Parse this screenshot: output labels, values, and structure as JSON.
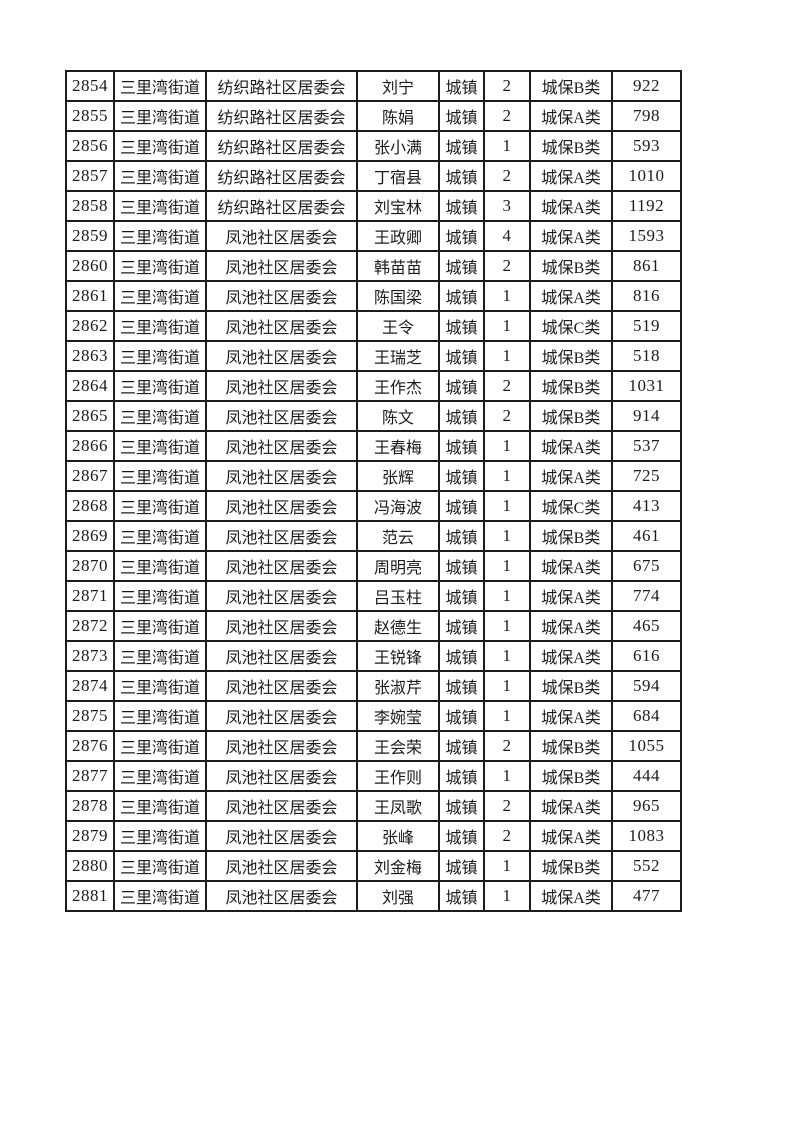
{
  "table": {
    "rows": [
      [
        "2854",
        "三里湾街道",
        "纺织路社区居委会",
        "刘宁",
        "城镇",
        "2",
        "城保B类",
        "922"
      ],
      [
        "2855",
        "三里湾街道",
        "纺织路社区居委会",
        "陈娟",
        "城镇",
        "2",
        "城保A类",
        "798"
      ],
      [
        "2856",
        "三里湾街道",
        "纺织路社区居委会",
        "张小满",
        "城镇",
        "1",
        "城保B类",
        "593"
      ],
      [
        "2857",
        "三里湾街道",
        "纺织路社区居委会",
        "丁宿县",
        "城镇",
        "2",
        "城保A类",
        "1010"
      ],
      [
        "2858",
        "三里湾街道",
        "纺织路社区居委会",
        "刘宝林",
        "城镇",
        "3",
        "城保A类",
        "1192"
      ],
      [
        "2859",
        "三里湾街道",
        "凤池社区居委会",
        "王政卿",
        "城镇",
        "4",
        "城保A类",
        "1593"
      ],
      [
        "2860",
        "三里湾街道",
        "凤池社区居委会",
        "韩苗苗",
        "城镇",
        "2",
        "城保B类",
        "861"
      ],
      [
        "2861",
        "三里湾街道",
        "凤池社区居委会",
        "陈国梁",
        "城镇",
        "1",
        "城保A类",
        "816"
      ],
      [
        "2862",
        "三里湾街道",
        "凤池社区居委会",
        "王令",
        "城镇",
        "1",
        "城保C类",
        "519"
      ],
      [
        "2863",
        "三里湾街道",
        "凤池社区居委会",
        "王瑞芝",
        "城镇",
        "1",
        "城保B类",
        "518"
      ],
      [
        "2864",
        "三里湾街道",
        "凤池社区居委会",
        "王作杰",
        "城镇",
        "2",
        "城保B类",
        "1031"
      ],
      [
        "2865",
        "三里湾街道",
        "凤池社区居委会",
        "陈文",
        "城镇",
        "2",
        "城保B类",
        "914"
      ],
      [
        "2866",
        "三里湾街道",
        "凤池社区居委会",
        "王春梅",
        "城镇",
        "1",
        "城保A类",
        "537"
      ],
      [
        "2867",
        "三里湾街道",
        "凤池社区居委会",
        "张辉",
        "城镇",
        "1",
        "城保A类",
        "725"
      ],
      [
        "2868",
        "三里湾街道",
        "凤池社区居委会",
        "冯海波",
        "城镇",
        "1",
        "城保C类",
        "413"
      ],
      [
        "2869",
        "三里湾街道",
        "凤池社区居委会",
        "范云",
        "城镇",
        "1",
        "城保B类",
        "461"
      ],
      [
        "2870",
        "三里湾街道",
        "凤池社区居委会",
        "周明亮",
        "城镇",
        "1",
        "城保A类",
        "675"
      ],
      [
        "2871",
        "三里湾街道",
        "凤池社区居委会",
        "吕玉柱",
        "城镇",
        "1",
        "城保A类",
        "774"
      ],
      [
        "2872",
        "三里湾街道",
        "凤池社区居委会",
        "赵德生",
        "城镇",
        "1",
        "城保A类",
        "465"
      ],
      [
        "2873",
        "三里湾街道",
        "凤池社区居委会",
        "王锐锋",
        "城镇",
        "1",
        "城保A类",
        "616"
      ],
      [
        "2874",
        "三里湾街道",
        "凤池社区居委会",
        "张淑芹",
        "城镇",
        "1",
        "城保B类",
        "594"
      ],
      [
        "2875",
        "三里湾街道",
        "凤池社区居委会",
        "李婉莹",
        "城镇",
        "1",
        "城保A类",
        "684"
      ],
      [
        "2876",
        "三里湾街道",
        "凤池社区居委会",
        "王会荣",
        "城镇",
        "2",
        "城保B类",
        "1055"
      ],
      [
        "2877",
        "三里湾街道",
        "凤池社区居委会",
        "王作则",
        "城镇",
        "1",
        "城保B类",
        "444"
      ],
      [
        "2878",
        "三里湾街道",
        "凤池社区居委会",
        "王凤歌",
        "城镇",
        "2",
        "城保A类",
        "965"
      ],
      [
        "2879",
        "三里湾街道",
        "凤池社区居委会",
        "张峰",
        "城镇",
        "2",
        "城保A类",
        "1083"
      ],
      [
        "2880",
        "三里湾街道",
        "凤池社区居委会",
        "刘金梅",
        "城镇",
        "1",
        "城保B类",
        "552"
      ],
      [
        "2881",
        "三里湾街道",
        "凤池社区居委会",
        "刘强",
        "城镇",
        "1",
        "城保A类",
        "477"
      ]
    ]
  },
  "colors": {
    "border": "#1c1c1c",
    "text": "#1b1b1b",
    "background": "#ffffff"
  }
}
